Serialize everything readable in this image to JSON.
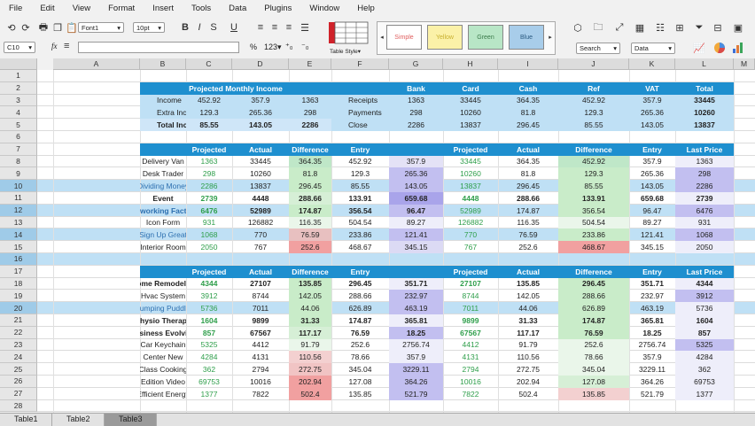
{
  "menu": [
    "File",
    "Edit",
    "View",
    "Format",
    "Insert",
    "Tools",
    "Data",
    "Plugins",
    "Window",
    "Help"
  ],
  "toolbar": {
    "font": "Font1",
    "size": "10pt",
    "bold": "B",
    "italic": "I",
    "strike": "S",
    "underline": "U",
    "percent": "%",
    "numfmt": "123",
    "search": "Search",
    "data_dd": "Data",
    "table_style_label": "Table Style"
  },
  "styles": [
    {
      "label": "Simple",
      "bg": "#ffffff",
      "fg": "#e06060"
    },
    {
      "label": "Yellow",
      "bg": "#fbf1a8",
      "fg": "#c8b030"
    },
    {
      "label": "Green",
      "bg": "#b8e6c6",
      "fg": "#3a7a4a"
    },
    {
      "label": "Blue",
      "bg": "#a8cdea",
      "fg": "#2a5a80"
    }
  ],
  "formula": {
    "cell_ref": "C10",
    "fx": "fx"
  },
  "columns": [
    "A",
    "B",
    "C",
    "D",
    "E",
    "F",
    "G",
    "H",
    "I",
    "J",
    "K",
    "L",
    "M"
  ],
  "rows": [
    "1",
    "2",
    "3",
    "4",
    "5",
    "6",
    "7",
    "8",
    "9",
    "10",
    "11",
    "12",
    "13",
    "14",
    "15",
    "16",
    "17",
    "18",
    "19",
    "20",
    "21",
    "22",
    "23",
    "24",
    "25",
    "26",
    "27",
    "28"
  ],
  "highlight_rows": [
    "10",
    "12",
    "14",
    "16",
    "20"
  ],
  "sheets": [
    "Table1",
    "Table2",
    "Table3"
  ],
  "active_sheet": "Table3",
  "colors": {
    "header": "#1e8fcf",
    "row_blue": "#bfe0f5",
    "total_blue": "#cfe6f8",
    "green_text": "#2e9e4a",
    "blue_text": "#2e70b0",
    "green_cell": "#c9ecc9",
    "red_cell": "#f1a0a0",
    "purple_cell": "#c2bff0"
  },
  "top_left": {
    "title": "Projected Monthly Income",
    "rows": [
      {
        "label": "Income",
        "v": [
          "452.92",
          "357.9",
          "1363"
        ]
      },
      {
        "label": "Extra Income",
        "v": [
          "129.3",
          "265.36",
          "298"
        ]
      },
      {
        "label": "Total Income",
        "v": [
          "85.55",
          "143.05",
          "2286"
        ],
        "bold": true
      }
    ]
  },
  "top_right": {
    "headers": [
      "Bank",
      "Card",
      "Cash",
      "Ref",
      "VAT",
      "Total"
    ],
    "rows": [
      {
        "label": "Receipts",
        "v": [
          "1363",
          "33445",
          "364.35",
          "452.92",
          "357.9",
          "33445"
        ]
      },
      {
        "label": "Payments",
        "v": [
          "298",
          "10260",
          "81.8",
          "129.3",
          "265.36",
          "10260"
        ]
      },
      {
        "label": "Close",
        "v": [
          "2286",
          "13837",
          "296.45",
          "85.55",
          "143.05",
          "13837"
        ]
      }
    ]
  },
  "block_headers": [
    "Projected",
    "Actual",
    "Difference",
    "Entry",
    "Last Price"
  ],
  "block1_left": [
    {
      "label": "Delivery Van",
      "v": [
        "1363",
        "33445",
        "364.35",
        "452.92",
        "357.9"
      ]
    },
    {
      "label": "Desk Trader",
      "v": [
        "298",
        "10260",
        "81.8",
        "129.3",
        "265.36"
      ]
    },
    {
      "label": "Dividing Money",
      "v": [
        "2286",
        "13837",
        "296.45",
        "85.55",
        "143.05"
      ]
    },
    {
      "label": "Event",
      "v": [
        "2739",
        "4448",
        "288.66",
        "133.91",
        "659.68"
      ]
    },
    {
      "label": "Networking Factory",
      "v": [
        "6476",
        "52989",
        "174.87",
        "356.54",
        "96.47"
      ]
    },
    {
      "label": "Icon Form",
      "v": [
        "931",
        "126882",
        "116.35",
        "504.54",
        "89.27"
      ]
    },
    {
      "label": "Sign Up Great",
      "v": [
        "1068",
        "770",
        "76.59",
        "233.86",
        "121.41"
      ]
    },
    {
      "label": "Interior Room",
      "v": [
        "2050",
        "767",
        "252.6",
        "468.67",
        "345.15"
      ]
    }
  ],
  "block1_right": [
    {
      "v": [
        "33445",
        "364.35",
        "452.92",
        "357.9",
        "1363"
      ]
    },
    {
      "v": [
        "10260",
        "81.8",
        "129.3",
        "265.36",
        "298"
      ]
    },
    {
      "v": [
        "13837",
        "296.45",
        "85.55",
        "143.05",
        "2286"
      ]
    },
    {
      "v": [
        "4448",
        "288.66",
        "133.91",
        "659.68",
        "2739"
      ]
    },
    {
      "v": [
        "52989",
        "174.87",
        "356.54",
        "96.47",
        "6476"
      ]
    },
    {
      "v": [
        "126882",
        "116.35",
        "504.54",
        "89.27",
        "931"
      ]
    },
    {
      "v": [
        "770",
        "76.59",
        "233.86",
        "121.41",
        "1068"
      ]
    },
    {
      "v": [
        "767",
        "252.6",
        "468.67",
        "345.15",
        "2050"
      ]
    }
  ],
  "block2_left": [
    {
      "label": "Home Remodeled",
      "v": [
        "4344",
        "27107",
        "135.85",
        "296.45",
        "351.71"
      ]
    },
    {
      "label": "Hvac System",
      "v": [
        "3912",
        "8744",
        "142.05",
        "288.66",
        "232.97"
      ]
    },
    {
      "label": "Jumping Puddle",
      "v": [
        "5736",
        "7011",
        "44.06",
        "626.89",
        "463.19"
      ]
    },
    {
      "label": "Physio Therapy",
      "v": [
        "1604",
        "9899",
        "31.33",
        "174.87",
        "365.81"
      ]
    },
    {
      "label": "Business Evolving",
      "v": [
        "857",
        "67567",
        "117.17",
        "76.59",
        "18.25"
      ]
    },
    {
      "label": "Car Keychain",
      "v": [
        "5325",
        "4412",
        "91.79",
        "252.6",
        "2756.74"
      ]
    },
    {
      "label": "Center New",
      "v": [
        "4284",
        "4131",
        "110.56",
        "78.66",
        "357.9"
      ]
    },
    {
      "label": "Class Cooking",
      "v": [
        "362",
        "2794",
        "272.75",
        "345.04",
        "3229.11"
      ]
    },
    {
      "label": "Edition Video",
      "v": [
        "69753",
        "10016",
        "202.94",
        "127.08",
        "364.26"
      ]
    },
    {
      "label": "Efficient Energy",
      "v": [
        "1377",
        "7822",
        "502.4",
        "135.85",
        "521.79"
      ]
    }
  ],
  "block2_right": [
    {
      "v": [
        "27107",
        "135.85",
        "296.45",
        "351.71",
        "4344"
      ]
    },
    {
      "v": [
        "8744",
        "142.05",
        "288.66",
        "232.97",
        "3912"
      ]
    },
    {
      "v": [
        "7011",
        "44.06",
        "626.89",
        "463.19",
        "5736"
      ]
    },
    {
      "v": [
        "9899",
        "31.33",
        "174.87",
        "365.81",
        "1604"
      ]
    },
    {
      "v": [
        "67567",
        "117.17",
        "76.59",
        "18.25",
        "857"
      ]
    },
    {
      "v": [
        "4412",
        "91.79",
        "252.6",
        "2756.74",
        "5325"
      ]
    },
    {
      "v": [
        "4131",
        "110.56",
        "78.66",
        "357.9",
        "4284"
      ]
    },
    {
      "v": [
        "2794",
        "272.75",
        "345.04",
        "3229.11",
        "362"
      ]
    },
    {
      "v": [
        "10016",
        "202.94",
        "127.08",
        "364.26",
        "69753"
      ]
    },
    {
      "v": [
        "7822",
        "502.4",
        "135.85",
        "521.79",
        "1377"
      ]
    }
  ]
}
